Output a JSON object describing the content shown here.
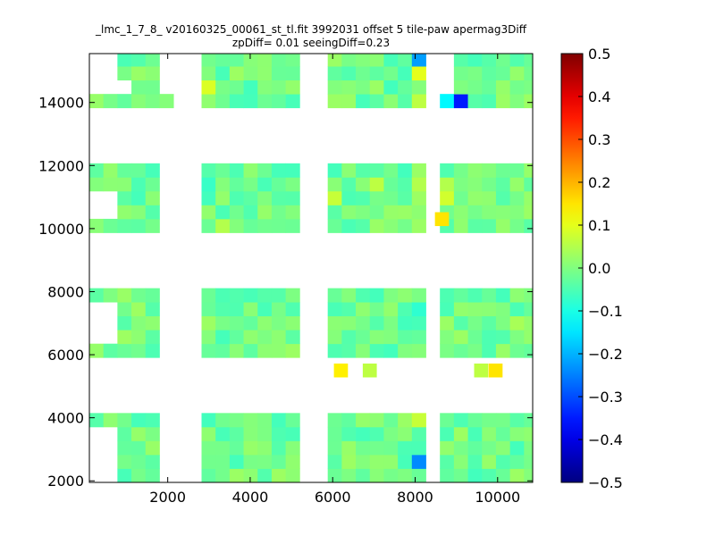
{
  "chart_data": {
    "type": "heatmap",
    "title": "_lmc_1_7_8_ v20160325_00061_st_tl.fit 3992031 offset 5 tile-paw apermag3Diff",
    "subtitle": "zpDiff= 0.01 seeingDiff=0.23",
    "xlabel": "",
    "ylabel": "",
    "xlim": [
      100,
      10850
    ],
    "ylim": [
      1950,
      15550
    ],
    "x_ticks": [
      2000,
      4000,
      6000,
      8000,
      10000
    ],
    "y_ticks": [
      2000,
      4000,
      6000,
      8000,
      10000,
      12000,
      14000
    ],
    "colorbar": {
      "min": -0.5,
      "max": 0.5,
      "colormap": "jet",
      "ticks": [
        -0.5,
        -0.4,
        -0.3,
        -0.2,
        -0.1,
        0.0,
        0.1,
        0.2,
        0.3,
        0.4,
        0.5
      ],
      "tick_labels": [
        "−0.5",
        "−0.4",
        "−0.3",
        "−0.2",
        "−0.1",
        "0.0",
        "0.1",
        "0.2",
        "0.3",
        "0.4",
        "0.5"
      ]
    },
    "grid": false,
    "cell_width": 340,
    "cell_height": 440,
    "background_value": -0.02,
    "tiles": [
      {
        "x0": 100,
        "x1": 1800,
        "y0": 1950,
        "y1": 4100
      },
      {
        "x0": 2800,
        "x1": 5100,
        "y0": 1950,
        "y1": 4100
      },
      {
        "x0": 5800,
        "x1": 8150,
        "y0": 1950,
        "y1": 4100
      },
      {
        "x0": 8500,
        "x1": 10850,
        "y0": 1950,
        "y1": 4100
      },
      {
        "x0": 100,
        "x1": 1800,
        "y0": 5800,
        "y1": 7900
      },
      {
        "x0": 2800,
        "x1": 5100,
        "y0": 5800,
        "y1": 7900
      },
      {
        "x0": 5800,
        "x1": 8150,
        "y0": 5800,
        "y1": 7900
      },
      {
        "x0": 8500,
        "x1": 10850,
        "y0": 5800,
        "y1": 7900
      },
      {
        "x0": 100,
        "x1": 1800,
        "y0": 9800,
        "y1": 11900
      },
      {
        "x0": 2800,
        "x1": 5100,
        "y0": 9800,
        "y1": 11900
      },
      {
        "x0": 5800,
        "x1": 8150,
        "y0": 9800,
        "y1": 11900
      },
      {
        "x0": 8500,
        "x1": 10850,
        "y0": 9800,
        "y1": 11900
      },
      {
        "x0": 100,
        "x1": 2150,
        "y0": 13800,
        "y1": 15550
      },
      {
        "x0": 2800,
        "x1": 5100,
        "y0": 13800,
        "y1": 15550
      },
      {
        "x0": 5800,
        "x1": 8150,
        "y0": 13800,
        "y1": 15550
      },
      {
        "x0": 8500,
        "x1": 10850,
        "y0": 13800,
        "y1": 15550
      }
    ],
    "gaps": [
      {
        "x0": 100,
        "x1": 800,
        "y0": 1950,
        "y1": 3800
      },
      {
        "x0": 100,
        "x1": 800,
        "y0": 6200,
        "y1": 7500
      },
      {
        "x0": 100,
        "x1": 800,
        "y0": 10200,
        "y1": 11300
      },
      {
        "x0": 100,
        "x1": 800,
        "y0": 14400,
        "y1": 15550
      },
      {
        "x0": 100,
        "x1": 1000,
        "y0": 14400,
        "y1": 14800
      },
      {
        "x0": 1800,
        "x1": 2150,
        "y0": 14200,
        "y1": 15550
      },
      {
        "x0": 8500,
        "x1": 8800,
        "y0": 14300,
        "y1": 15550
      }
    ],
    "extra_cells": [
      {
        "x": 6200,
        "y": 5500,
        "v": 0.14
      },
      {
        "x": 6900,
        "y": 5500,
        "v": 0.06
      },
      {
        "x": 9600,
        "y": 5500,
        "v": 0.06
      },
      {
        "x": 9950,
        "y": 5500,
        "v": 0.15
      },
      {
        "x": 8650,
        "y": 10300,
        "v": 0.15
      }
    ],
    "highlights": [
      {
        "x": 2950,
        "y": 14300,
        "v": 0.09
      },
      {
        "x": 3350,
        "y": 10000,
        "v": 0.05
      },
      {
        "x": 5950,
        "y": 11000,
        "v": 0.07
      },
      {
        "x": 6950,
        "y": 11600,
        "v": 0.06
      },
      {
        "x": 7950,
        "y": 11600,
        "v": 0.05
      },
      {
        "x": 7950,
        "y": 15250,
        "v": -0.22
      },
      {
        "x": 7950,
        "y": 14800,
        "v": 0.1
      },
      {
        "x": 7950,
        "y": 14000,
        "v": 0.06
      },
      {
        "x": 8650,
        "y": 13900,
        "v": -0.13
      },
      {
        "x": 8650,
        "y": 11000,
        "v": 0.08
      },
      {
        "x": 8650,
        "y": 11600,
        "v": 0.05
      },
      {
        "x": 9000,
        "y": 13900,
        "v": -0.35
      },
      {
        "x": 9350,
        "y": 13900,
        "v": -0.04
      },
      {
        "x": 7950,
        "y": 7300,
        "v": -0.08
      },
      {
        "x": 7950,
        "y": 2600,
        "v": -0.24
      },
      {
        "x": 7950,
        "y": 3800,
        "v": 0.07
      },
      {
        "x": 1950,
        "y": 3300,
        "v": 0.07
      },
      {
        "x": 1950,
        "y": 2950,
        "v": 0.09
      },
      {
        "x": 4100,
        "y": 14600,
        "v": -0.06
      },
      {
        "x": 3000,
        "y": 11000,
        "v": -0.06
      },
      {
        "x": 3000,
        "y": 11600,
        "v": -0.07
      },
      {
        "x": 10600,
        "y": 6900,
        "v": 0.04
      },
      {
        "x": 9350,
        "y": 3200,
        "v": -0.03
      },
      {
        "x": 9000,
        "y": 4000,
        "v": -0.05
      }
    ]
  }
}
